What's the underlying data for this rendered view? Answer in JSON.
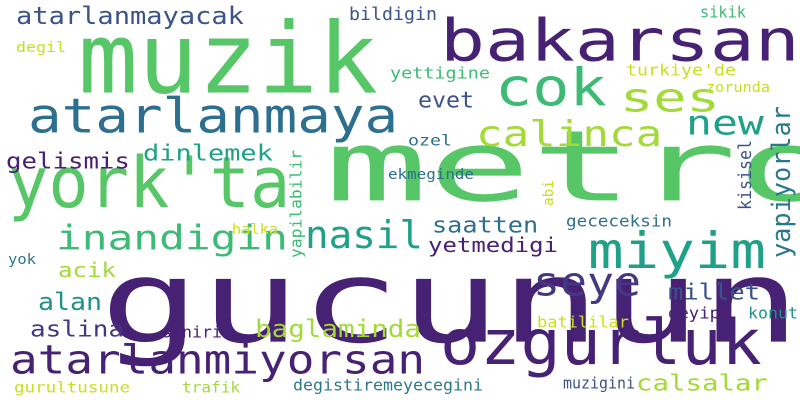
{
  "words": [
    {
      "key": "gucunun",
      "text": "gucunun",
      "color": "#472173"
    },
    {
      "key": "metroda",
      "text": "metroda",
      "color": "#56c667"
    },
    {
      "key": "muzik",
      "text": "muzik",
      "color": "#56c667"
    },
    {
      "key": "bakarsan",
      "text": "bakarsan",
      "color": "#472173"
    },
    {
      "key": "york-ta",
      "text": "york'ta",
      "color": "#56c667"
    },
    {
      "key": "ozgurluk",
      "text": "ozgurluk",
      "color": "#472173"
    },
    {
      "key": "atarlanmaya",
      "text": "atarlanmaya",
      "color": "#2d6f8e"
    },
    {
      "key": "cok",
      "text": "cok",
      "color": "#3cbb75"
    },
    {
      "key": "miyim",
      "text": "miyim",
      "color": "#1fa187"
    },
    {
      "key": "atarlanmiyorsan",
      "text": "atarlanmiyorsan",
      "color": "#472173"
    },
    {
      "key": "ses",
      "text": "ses",
      "color": "#a2da37"
    },
    {
      "key": "seye",
      "text": "seye",
      "color": "#453781"
    },
    {
      "key": "nasil",
      "text": "nasil",
      "color": "#1fa187"
    },
    {
      "key": "calinca",
      "text": "calinca",
      "color": "#a2da37"
    },
    {
      "key": "new",
      "text": "new",
      "color": "#1fa187"
    },
    {
      "key": "inandigin",
      "text": "inandigin",
      "color": "#3cbb75"
    },
    {
      "key": "yapiyorlar",
      "text": "yapiyorlar",
      "color": "#2a788e"
    },
    {
      "key": "atarlanmayacak",
      "text": "atarlanmayacak",
      "color": "#3b528b"
    },
    {
      "key": "gelismis",
      "text": "gelismis",
      "color": "#472173"
    },
    {
      "key": "dinlemek",
      "text": "dinlemek",
      "color": "#1fa187"
    },
    {
      "key": "baglaminda",
      "text": "baglaminda",
      "color": "#a2da37"
    },
    {
      "key": "saatten",
      "text": "saatten",
      "color": "#2d6f8e"
    },
    {
      "key": "millet",
      "text": "millet",
      "color": "#3b528b"
    },
    {
      "key": "alan",
      "text": "alan",
      "color": "#21918c"
    },
    {
      "key": "evet",
      "text": "evet",
      "color": "#3b528b"
    },
    {
      "key": "calsalar",
      "text": "calsalar",
      "color": "#a2da37"
    },
    {
      "key": "aslina",
      "text": "aslina",
      "color": "#453781"
    },
    {
      "key": "yetmedigi",
      "text": "yetmedigi",
      "color": "#472173"
    },
    {
      "key": "acik",
      "text": "acik",
      "color": "#a2da37"
    },
    {
      "key": "bildigin",
      "text": "bildigin",
      "color": "#3b528b"
    },
    {
      "key": "yettigine",
      "text": "yettigine",
      "color": "#3cbb75"
    },
    {
      "key": "turkiye-de",
      "text": "turkiye'de",
      "color": "#c8e020"
    },
    {
      "key": "degistiremeyecegini",
      "text": "degistiremeyecegini",
      "color": "#2a788e"
    },
    {
      "key": "kisisel",
      "text": "kisisel",
      "color": "#3b528b"
    },
    {
      "key": "sikik",
      "text": "sikik",
      "color": "#3cbb75"
    },
    {
      "key": "degil",
      "text": "degil",
      "color": "#c8e020"
    },
    {
      "key": "ozel",
      "text": "ozel",
      "color": "#2d6f8e"
    },
    {
      "key": "ekmeginde",
      "text": "ekmeginde",
      "color": "#2d6f8e"
    },
    {
      "key": "zorunda",
      "text": "zorunda",
      "color": "#c8e020"
    },
    {
      "key": "yapilabilir",
      "text": "yapilabilir",
      "color": "#3cbb75"
    },
    {
      "key": "abi",
      "text": "abi",
      "color": "#c8e020"
    },
    {
      "key": "gececeksin",
      "text": "gececeksin",
      "color": "#2d6f8e"
    },
    {
      "key": "halka",
      "text": "halka",
      "color": "#c8e020"
    },
    {
      "key": "yok",
      "text": "yok",
      "color": "#2a788e"
    },
    {
      "key": "deyip",
      "text": "deyip",
      "color": "#472173"
    },
    {
      "key": "konut",
      "text": "konut",
      "color": "#21918c"
    },
    {
      "key": "siniri",
      "text": "siniri",
      "color": "#472173"
    },
    {
      "key": "batililar",
      "text": "batililar",
      "color": "#c8e020"
    },
    {
      "key": "muzigini",
      "text": "muzigini",
      "color": "#3b528b"
    },
    {
      "key": "gurultusune",
      "text": "gurultusune",
      "color": "#c8e020"
    },
    {
      "key": "trafik",
      "text": "trafik",
      "color": "#a2da37"
    }
  ]
}
